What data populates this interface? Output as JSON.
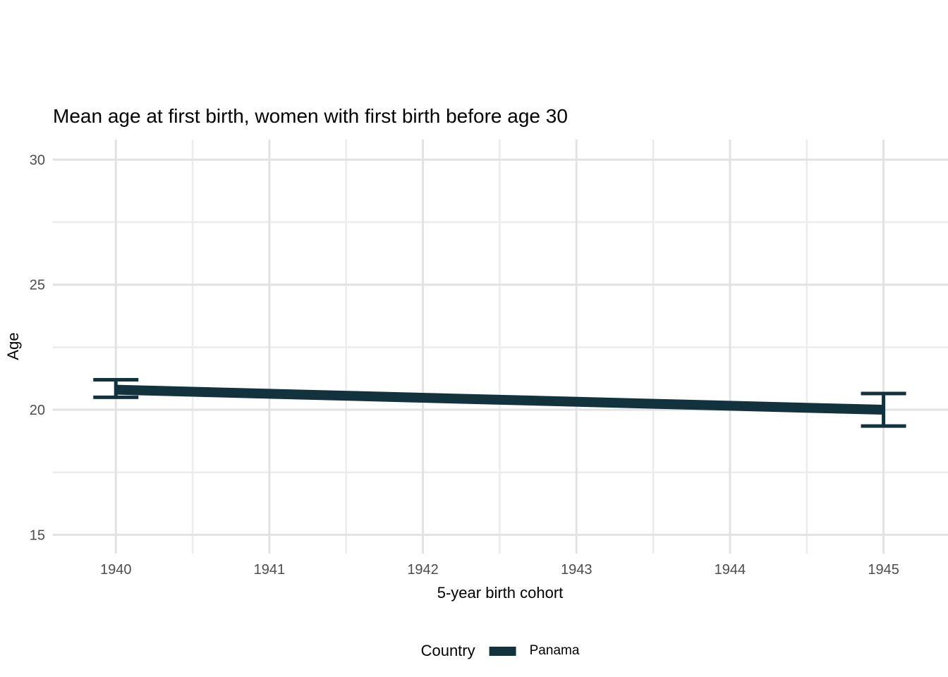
{
  "chart_data": {
    "type": "line",
    "title": "Mean age at first birth, women with first birth before age 30",
    "xlabel": "5-year birth cohort",
    "ylabel": "Age",
    "x": [
      1940,
      1945
    ],
    "series": [
      {
        "name": "Panama",
        "values": [
          20.8,
          20.0
        ],
        "ci_lower": [
          20.5,
          19.35
        ],
        "ci_upper": [
          21.2,
          20.65
        ],
        "color": "#12333e"
      }
    ],
    "x_ticks": [
      1940,
      1941,
      1942,
      1943,
      1944,
      1945
    ],
    "y_ticks": [
      15,
      20,
      25,
      30
    ],
    "xlim": [
      1939.59,
      1945.42
    ],
    "ylim": [
      14.25,
      30.8
    ],
    "grid": "on",
    "grid_major_color": "#e2e2e2",
    "grid_minor_color": "#ececec",
    "tick_label_color": "#4d4d4d",
    "legend_title": "Country",
    "legend_position": "bottom"
  }
}
